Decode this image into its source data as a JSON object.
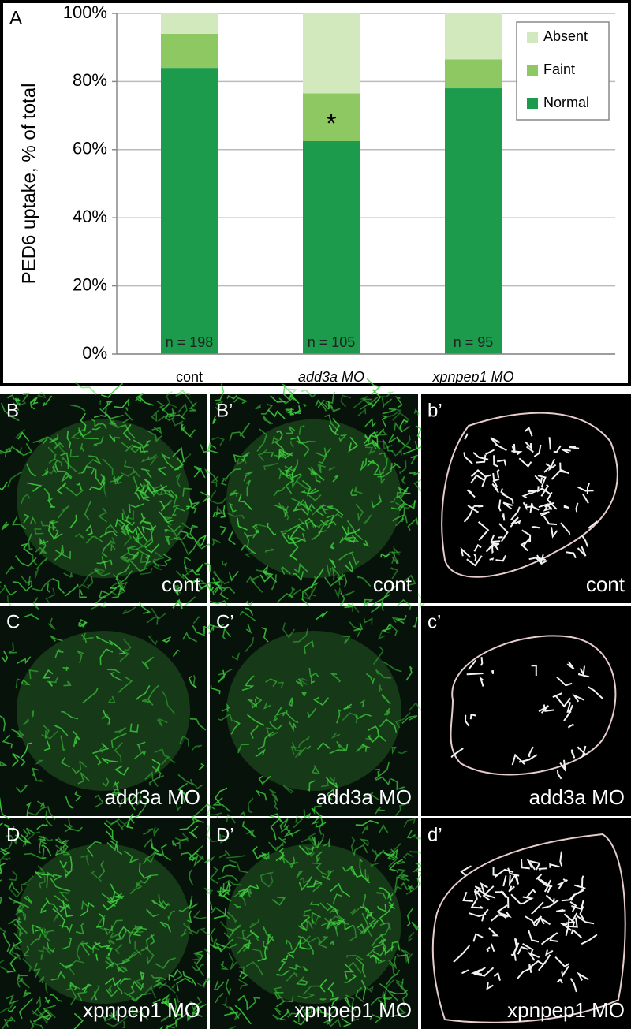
{
  "chart_data": {
    "type": "stacked_bar",
    "panel_label": "A",
    "y_label": "PED6 uptake, % of total",
    "categories": [
      "cont",
      "add3a MO",
      "xpnpep1 MO"
    ],
    "series": [
      {
        "name": "Normal",
        "color": "#1b9b4b",
        "values": [
          84,
          62.5,
          78
        ]
      },
      {
        "name": "Faint",
        "color": "#8dc862",
        "values": [
          10,
          14,
          8.5
        ]
      },
      {
        "name": "Absent",
        "color": "#d2e8bd",
        "values": [
          6,
          23.5,
          13.5
        ]
      }
    ],
    "bar_annotations": [
      "n = 198",
      "n = 105",
      "n = 95"
    ],
    "significance_mark": "*",
    "ylim": [
      0,
      100
    ],
    "yticks": [
      {
        "value": 0,
        "label": "0%"
      },
      {
        "value": 20,
        "label": "20%"
      },
      {
        "value": 40,
        "label": "40%"
      },
      {
        "value": 60,
        "label": "60%"
      },
      {
        "value": 80,
        "label": "80%"
      },
      {
        "value": 100,
        "label": "100%"
      }
    ],
    "grid": true,
    "legend": "upper right"
  },
  "panels": [
    {
      "label": "B",
      "caption": "cont"
    },
    {
      "label": "B’",
      "caption": "cont"
    },
    {
      "label": "b’",
      "caption": "cont"
    },
    {
      "label": "C",
      "caption": "add3a MO"
    },
    {
      "label": "C’",
      "caption": "add3a MO"
    },
    {
      "label": "c’",
      "caption": "add3a MO"
    },
    {
      "label": "D",
      "caption": "xpnpep1 MO"
    },
    {
      "label": "D’",
      "caption": "xpnpep1 MO"
    },
    {
      "label": "d’",
      "caption": "xpnpep1 MO"
    }
  ]
}
